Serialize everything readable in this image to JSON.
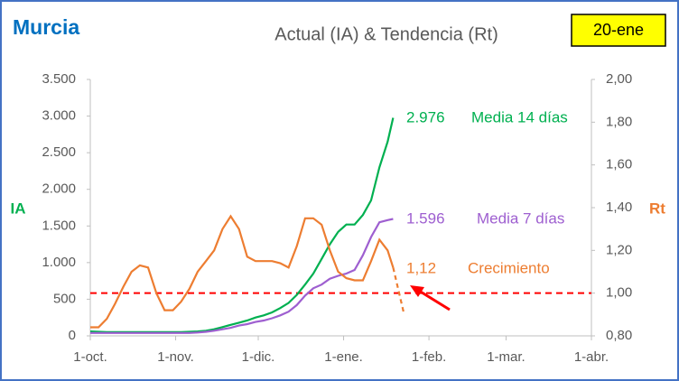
{
  "chart_data": {
    "type": "line",
    "title": "Actual (IA) & Tendencia (Rt)",
    "region": "Murcia",
    "date_badge": "20-ene",
    "ylabel": "IA",
    "y2label": "Rt",
    "xlim": [
      0,
      182
    ],
    "xticks": [
      {
        "value": 0,
        "label": "1-oct."
      },
      {
        "value": 31,
        "label": "1-nov."
      },
      {
        "value": 61,
        "label": "1-dic."
      },
      {
        "value": 92,
        "label": "1-ene."
      },
      {
        "value": 123,
        "label": "1-feb."
      },
      {
        "value": 151,
        "label": "1-mar."
      },
      {
        "value": 182,
        "label": "1-abr."
      }
    ],
    "ylim": [
      0,
      3500
    ],
    "yticks": [
      0,
      500,
      {
        "value": 1000,
        "label": "1.000"
      },
      {
        "value": 1500,
        "label": "1.500"
      },
      {
        "value": 2000,
        "label": "2.000"
      },
      {
        "value": 2500,
        "label": "2.500"
      },
      {
        "value": 3000,
        "label": "3.000"
      },
      {
        "value": 3500,
        "label": "3.500"
      }
    ],
    "y2lim": [
      0.8,
      2.0
    ],
    "y2ticks": [
      {
        "value": 0.8,
        "label": "0,80"
      },
      {
        "value": 1.0,
        "label": "1,00"
      },
      {
        "value": 1.2,
        "label": "1,20"
      },
      {
        "value": 1.4,
        "label": "1,40"
      },
      {
        "value": 1.6,
        "label": "1,60"
      },
      {
        "value": 1.8,
        "label": "1,80"
      },
      {
        "value": 2.0,
        "label": "2,00"
      }
    ],
    "x": [
      0,
      3,
      6,
      9,
      12,
      15,
      18,
      21,
      24,
      27,
      30,
      33,
      36,
      39,
      42,
      45,
      48,
      51,
      54,
      57,
      60,
      63,
      66,
      69,
      72,
      75,
      78,
      81,
      84,
      87,
      90,
      93,
      96,
      99,
      102,
      105,
      108,
      110
    ],
    "series": [
      {
        "name": "Media 14 días",
        "color": "#00B050",
        "values": [
          60,
          55,
          50,
          50,
          50,
          50,
          50,
          50,
          50,
          50,
          50,
          50,
          55,
          60,
          70,
          90,
          120,
          150,
          180,
          210,
          250,
          280,
          320,
          380,
          450,
          560,
          700,
          850,
          1050,
          1250,
          1420,
          1520,
          1520,
          1650,
          1850,
          2300,
          2650,
          2976
        ],
        "value_labels": [
          null,
          null,
          null,
          null,
          null,
          null,
          null,
          null,
          null,
          null,
          null,
          null,
          null,
          null,
          null,
          null,
          null,
          null,
          null,
          null,
          null,
          null,
          null,
          null,
          null,
          null,
          null,
          null,
          null,
          null,
          null,
          null,
          null,
          null,
          null,
          null,
          null,
          "2.976"
        ]
      },
      {
        "name": "Media 7 días",
        "color": "#9E5FD0",
        "values": [
          40,
          40,
          40,
          40,
          40,
          40,
          40,
          40,
          40,
          40,
          40,
          40,
          40,
          45,
          55,
          70,
          90,
          110,
          140,
          160,
          190,
          210,
          240,
          280,
          330,
          420,
          550,
          650,
          700,
          780,
          820,
          850,
          900,
          1100,
          1350,
          1550,
          1580,
          1596
        ],
        "value_labels": [
          null,
          null,
          null,
          null,
          null,
          null,
          null,
          null,
          null,
          null,
          null,
          null,
          null,
          null,
          null,
          null,
          null,
          null,
          null,
          null,
          null,
          null,
          null,
          null,
          null,
          null,
          null,
          null,
          null,
          null,
          null,
          null,
          null,
          null,
          null,
          null,
          null,
          "1.596"
        ]
      },
      {
        "name": "Crecimiento",
        "color": "#ED7D31",
        "axis": "y2",
        "values": [
          0.84,
          0.84,
          0.88,
          0.95,
          1.03,
          1.1,
          1.13,
          1.12,
          1.0,
          0.92,
          0.92,
          0.96,
          1.02,
          1.1,
          1.15,
          1.2,
          1.3,
          1.36,
          1.3,
          1.17,
          1.15,
          1.15,
          1.15,
          1.14,
          1.12,
          1.22,
          1.35,
          1.35,
          1.32,
          1.2,
          1.1,
          1.07,
          1.06,
          1.06,
          1.15,
          1.25,
          1.2,
          1.12
        ],
        "value_labels": [
          null,
          null,
          null,
          null,
          null,
          null,
          null,
          null,
          null,
          null,
          null,
          null,
          null,
          null,
          null,
          null,
          null,
          null,
          null,
          null,
          null,
          null,
          null,
          null,
          null,
          null,
          null,
          null,
          null,
          null,
          null,
          null,
          null,
          null,
          null,
          null,
          null,
          "1,12"
        ]
      },
      {
        "color": "#ED7D31",
        "axis": "y2",
        "dashed": true,
        "x": [
          110,
          114
        ],
        "values": [
          1.12,
          0.9
        ]
      }
    ],
    "reference_line": {
      "value": 1.0,
      "axis": "y2",
      "color": "#FF0000",
      "dashed": true
    }
  }
}
